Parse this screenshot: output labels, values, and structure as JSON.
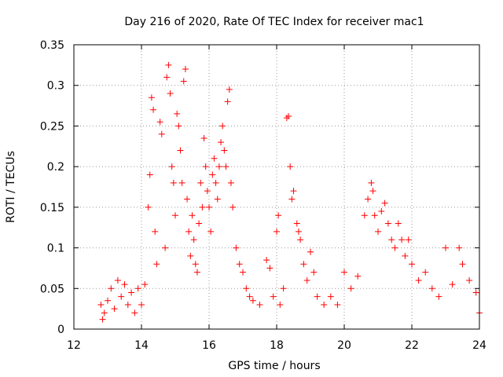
{
  "chart_data": {
    "type": "scatter",
    "title": "Day 216 of 2020, Rate Of TEC Index for receiver mac1",
    "xlabel": "GPS time / hours",
    "ylabel": "ROTI / TECUs",
    "xlim": [
      12,
      24
    ],
    "ylim": [
      0,
      0.35
    ],
    "xticks": [
      12,
      14,
      16,
      18,
      20,
      22,
      24
    ],
    "xtick_labels": [
      "12",
      "14",
      "16",
      "18",
      "20",
      "22",
      "24"
    ],
    "yticks": [
      0,
      0.05,
      0.1,
      0.15,
      0.2,
      0.25,
      0.3,
      0.35
    ],
    "ytick_labels": [
      "0",
      "0.05",
      "0.1",
      "0.15",
      "0.2",
      "0.25",
      "0.3",
      "0.35"
    ],
    "grid": true,
    "marker": "+",
    "color": "#ff0000",
    "series": [
      {
        "name": "ROTI",
        "points": [
          [
            12.8,
            0.03
          ],
          [
            12.85,
            0.012
          ],
          [
            12.9,
            0.02
          ],
          [
            13.0,
            0.035
          ],
          [
            13.1,
            0.05
          ],
          [
            13.2,
            0.025
          ],
          [
            13.3,
            0.06
          ],
          [
            13.4,
            0.04
          ],
          [
            13.5,
            0.055
          ],
          [
            13.6,
            0.03
          ],
          [
            13.7,
            0.045
          ],
          [
            13.8,
            0.02
          ],
          [
            13.9,
            0.05
          ],
          [
            14.0,
            0.03
          ],
          [
            14.1,
            0.055
          ],
          [
            14.2,
            0.15
          ],
          [
            14.25,
            0.19
          ],
          [
            14.3,
            0.285
          ],
          [
            14.35,
            0.27
          ],
          [
            14.4,
            0.12
          ],
          [
            14.45,
            0.08
          ],
          [
            14.55,
            0.255
          ],
          [
            14.6,
            0.24
          ],
          [
            14.7,
            0.1
          ],
          [
            14.75,
            0.31
          ],
          [
            14.8,
            0.325
          ],
          [
            14.85,
            0.29
          ],
          [
            14.9,
            0.2
          ],
          [
            14.95,
            0.18
          ],
          [
            15.0,
            0.14
          ],
          [
            15.05,
            0.265
          ],
          [
            15.1,
            0.25
          ],
          [
            15.15,
            0.22
          ],
          [
            15.2,
            0.18
          ],
          [
            15.25,
            0.305
          ],
          [
            15.3,
            0.32
          ],
          [
            15.35,
            0.16
          ],
          [
            15.4,
            0.12
          ],
          [
            15.45,
            0.09
          ],
          [
            15.5,
            0.14
          ],
          [
            15.55,
            0.11
          ],
          [
            15.6,
            0.08
          ],
          [
            15.65,
            0.07
          ],
          [
            15.7,
            0.13
          ],
          [
            15.75,
            0.18
          ],
          [
            15.8,
            0.15
          ],
          [
            15.85,
            0.235
          ],
          [
            15.9,
            0.2
          ],
          [
            15.95,
            0.17
          ],
          [
            16.0,
            0.15
          ],
          [
            16.05,
            0.12
          ],
          [
            16.1,
            0.19
          ],
          [
            16.15,
            0.21
          ],
          [
            16.2,
            0.18
          ],
          [
            16.25,
            0.16
          ],
          [
            16.3,
            0.2
          ],
          [
            16.35,
            0.23
          ],
          [
            16.4,
            0.25
          ],
          [
            16.45,
            0.22
          ],
          [
            16.5,
            0.2
          ],
          [
            16.55,
            0.28
          ],
          [
            16.6,
            0.295
          ],
          [
            16.65,
            0.18
          ],
          [
            16.7,
            0.15
          ],
          [
            16.8,
            0.1
          ],
          [
            16.9,
            0.08
          ],
          [
            17.0,
            0.07
          ],
          [
            17.1,
            0.05
          ],
          [
            17.2,
            0.04
          ],
          [
            17.3,
            0.035
          ],
          [
            17.5,
            0.03
          ],
          [
            17.7,
            0.085
          ],
          [
            17.8,
            0.075
          ],
          [
            17.9,
            0.04
          ],
          [
            18.0,
            0.12
          ],
          [
            18.05,
            0.14
          ],
          [
            18.1,
            0.03
          ],
          [
            18.2,
            0.05
          ],
          [
            18.3,
            0.26
          ],
          [
            18.35,
            0.262
          ],
          [
            18.4,
            0.2
          ],
          [
            18.45,
            0.16
          ],
          [
            18.5,
            0.17
          ],
          [
            18.6,
            0.13
          ],
          [
            18.65,
            0.12
          ],
          [
            18.7,
            0.11
          ],
          [
            18.8,
            0.08
          ],
          [
            18.9,
            0.06
          ],
          [
            19.0,
            0.095
          ],
          [
            19.1,
            0.07
          ],
          [
            19.2,
            0.04
          ],
          [
            19.4,
            0.03
          ],
          [
            19.6,
            0.04
          ],
          [
            19.8,
            0.03
          ],
          [
            20.0,
            0.07
          ],
          [
            20.2,
            0.05
          ],
          [
            20.4,
            0.065
          ],
          [
            20.6,
            0.14
          ],
          [
            20.7,
            0.16
          ],
          [
            20.8,
            0.18
          ],
          [
            20.85,
            0.17
          ],
          [
            20.9,
            0.14
          ],
          [
            21.0,
            0.12
          ],
          [
            21.1,
            0.145
          ],
          [
            21.2,
            0.155
          ],
          [
            21.3,
            0.13
          ],
          [
            21.4,
            0.11
          ],
          [
            21.5,
            0.1
          ],
          [
            21.6,
            0.13
          ],
          [
            21.7,
            0.11
          ],
          [
            21.8,
            0.09
          ],
          [
            21.9,
            0.11
          ],
          [
            22.0,
            0.08
          ],
          [
            22.2,
            0.06
          ],
          [
            22.4,
            0.07
          ],
          [
            22.6,
            0.05
          ],
          [
            22.8,
            0.04
          ],
          [
            23.0,
            0.1
          ],
          [
            23.2,
            0.055
          ],
          [
            23.4,
            0.1
          ],
          [
            23.5,
            0.08
          ],
          [
            23.7,
            0.06
          ],
          [
            23.9,
            0.045
          ],
          [
            24.0,
            0.02
          ]
        ]
      }
    ]
  }
}
